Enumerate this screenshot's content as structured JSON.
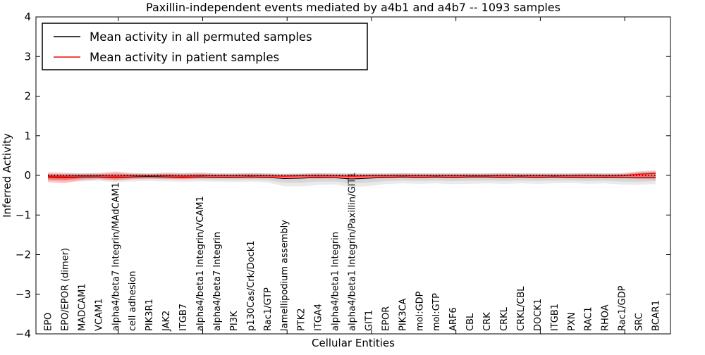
{
  "chart_data": {
    "type": "line",
    "title": "Paxillin-independent events mediated by a4b1 and a4b7 -- 1093 samples",
    "xlabel": "Cellular Entities",
    "ylabel": "Inferred Activity",
    "ylim": [
      -4,
      4
    ],
    "grid": false,
    "legend_position": "upper left",
    "ytick_values": [
      4,
      3,
      2,
      1,
      0,
      -1,
      -2,
      -3,
      -4
    ],
    "ytick_labels": [
      "4",
      "3",
      "2",
      "1",
      "0",
      "−1",
      "−2",
      "−3",
      "−4"
    ],
    "xtick_major_indices": [
      4,
      9,
      14,
      19,
      24,
      29,
      34
    ],
    "categories": [
      "EPO",
      "EPO/EPOR (dimer)",
      "MADCAM1",
      "VCAM1",
      "alpha4/beta7 Integrin/MAdCAM1",
      "cell adhesion",
      "PIK3R1",
      "JAK2",
      "ITGB7",
      "alpha4/beta1 Integrin/VCAM1",
      "alpha4/beta7 Integrin",
      "PI3K",
      "p130Cas/Crk/Dock1",
      "Rac1/GTP",
      "lamellipodium assembly",
      "PTK2",
      "ITGA4",
      "alpha4/beta1 Integrin",
      "alpha4/beta1 Integrin/Paxillin/GIT1",
      "GIT1",
      "EPOR",
      "PIK3CA",
      "mol:GDP",
      "mol:GTP",
      "ARF6",
      "CBL",
      "CRK",
      "CRKL",
      "CRKL/CBL",
      "DOCK1",
      "ITGB1",
      "PXN",
      "RAC1",
      "RHOA",
      "Rac1/GDP",
      "SRC",
      "BCAR1"
    ],
    "series": [
      {
        "name": "Mean activity in all permuted samples",
        "color": "#000000",
        "band_color": "#888888",
        "values": [
          -0.04,
          -0.05,
          -0.04,
          -0.04,
          -0.06,
          -0.04,
          -0.03,
          -0.04,
          -0.05,
          -0.04,
          -0.05,
          -0.05,
          -0.04,
          -0.05,
          -0.08,
          -0.07,
          -0.05,
          -0.06,
          -0.09,
          -0.07,
          -0.05,
          -0.04,
          -0.05,
          -0.04,
          -0.05,
          -0.04,
          -0.04,
          -0.05,
          -0.04,
          -0.05,
          -0.04,
          -0.05,
          -0.06,
          -0.05,
          -0.06,
          -0.06,
          -0.05
        ],
        "band_upper": [
          0.04,
          0.04,
          0.05,
          0.05,
          0.05,
          0.05,
          0.04,
          0.05,
          0.05,
          0.06,
          0.05,
          0.05,
          0.05,
          0.05,
          0.04,
          0.04,
          0.05,
          0.05,
          0.04,
          0.04,
          0.05,
          0.05,
          0.05,
          0.05,
          0.05,
          0.05,
          0.05,
          0.05,
          0.05,
          0.05,
          0.05,
          0.05,
          0.05,
          0.05,
          0.04,
          0.05,
          0.06
        ],
        "band_lower": [
          -0.14,
          -0.15,
          -0.15,
          -0.14,
          -0.17,
          -0.15,
          -0.14,
          -0.15,
          -0.16,
          -0.15,
          -0.16,
          -0.17,
          -0.16,
          -0.18,
          -0.27,
          -0.28,
          -0.24,
          -0.23,
          -0.3,
          -0.27,
          -0.22,
          -0.2,
          -0.21,
          -0.2,
          -0.22,
          -0.21,
          -0.2,
          -0.21,
          -0.2,
          -0.21,
          -0.2,
          -0.19,
          -0.21,
          -0.2,
          -0.23,
          -0.24,
          -0.22
        ]
      },
      {
        "name": "Mean activity in patient samples",
        "color": "#ff0000",
        "band_color": "#ff0000",
        "values": [
          -0.02,
          -0.02,
          -0.01,
          -0.01,
          -0.02,
          -0.01,
          -0.01,
          -0.01,
          -0.02,
          -0.01,
          -0.01,
          -0.01,
          -0.01,
          -0.01,
          -0.02,
          -0.01,
          -0.01,
          -0.01,
          -0.02,
          -0.01,
          -0.01,
          -0.01,
          -0.01,
          -0.01,
          -0.01,
          -0.01,
          -0.01,
          -0.01,
          -0.01,
          -0.01,
          -0.01,
          -0.01,
          -0.01,
          -0.01,
          -0.01,
          0.03,
          0.05
        ],
        "band_upper": [
          0.08,
          0.07,
          0.05,
          0.06,
          0.1,
          0.06,
          0.05,
          0.07,
          0.06,
          0.07,
          0.05,
          0.05,
          0.06,
          0.05,
          0.04,
          0.05,
          0.06,
          0.05,
          0.05,
          0.05,
          0.05,
          0.06,
          0.05,
          0.05,
          0.05,
          0.05,
          0.05,
          0.06,
          0.05,
          0.05,
          0.05,
          0.05,
          0.06,
          0.05,
          0.06,
          0.1,
          0.13
        ],
        "band_lower": [
          -0.17,
          -0.2,
          -0.12,
          -0.09,
          -0.13,
          -0.09,
          -0.08,
          -0.09,
          -0.09,
          -0.08,
          -0.07,
          -0.07,
          -0.08,
          -0.07,
          -0.07,
          -0.07,
          -0.08,
          -0.07,
          -0.08,
          -0.07,
          -0.07,
          -0.07,
          -0.07,
          -0.07,
          -0.07,
          -0.07,
          -0.07,
          -0.07,
          -0.07,
          -0.07,
          -0.07,
          -0.07,
          -0.07,
          -0.07,
          -0.07,
          -0.09,
          -0.1
        ]
      }
    ],
    "zero_line": {
      "value": 0,
      "color": "#000000",
      "style": "dotted"
    },
    "legend": {
      "items": [
        {
          "label": "Mean activity in all permuted samples",
          "color": "#000000"
        },
        {
          "label": "Mean activity in patient samples",
          "color": "#ff0000"
        }
      ]
    }
  }
}
